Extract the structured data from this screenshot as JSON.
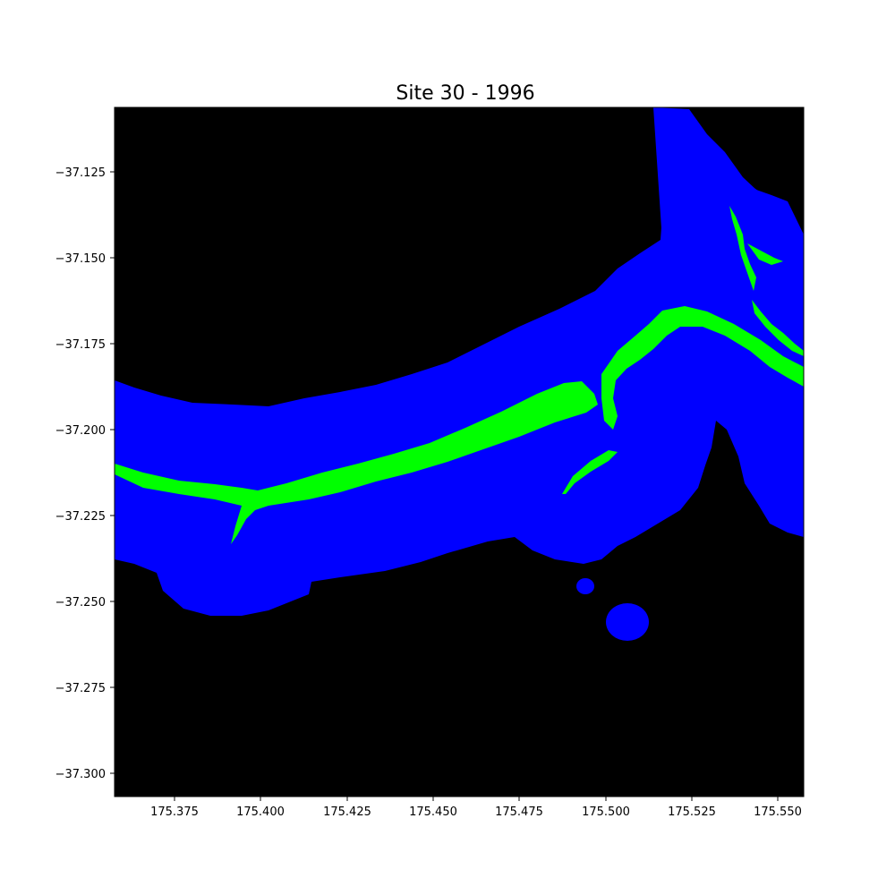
{
  "title": "Site 30 - 1996",
  "colors": {
    "background": "#000000",
    "water_mask": "#0000ff",
    "vegetation": "#00ff00",
    "axis": "#000000"
  },
  "axes": {
    "x_ticks": [
      "175.375",
      "175.400",
      "175.425",
      "175.450",
      "175.475",
      "175.500",
      "175.525",
      "175.550"
    ],
    "y_ticks": [
      "−37.125",
      "−37.150",
      "−37.175",
      "−37.200",
      "−37.225",
      "−37.250",
      "−37.275",
      "−37.300"
    ]
  }
}
